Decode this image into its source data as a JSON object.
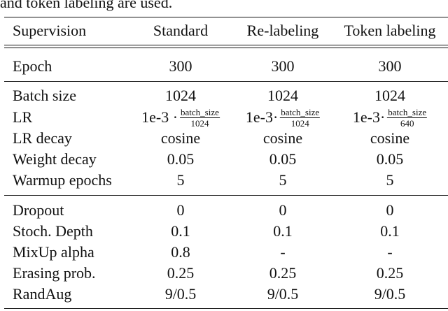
{
  "caption": "and token labeling are used.",
  "header": [
    "Supervision",
    "Standard",
    "Re-labeling",
    "Token labeling"
  ],
  "epoch_row": [
    "Epoch",
    "300",
    "300",
    "300"
  ],
  "group2": {
    "batch_size": [
      "Batch size",
      "1024",
      "1024",
      "1024"
    ],
    "lr": {
      "label": "LR",
      "cells": [
        {
          "prefix": "1e-3 ·",
          "num": "batch_size",
          "den": "1024"
        },
        {
          "prefix": "1e-3·",
          "num": "batch_size",
          "den": "1024"
        },
        {
          "prefix": "1e-3·",
          "num": "batch_size",
          "den": "640"
        }
      ]
    },
    "lr_decay": [
      "LR decay",
      "cosine",
      "cosine",
      "cosine"
    ],
    "weight_decay": [
      "Weight decay",
      "0.05",
      "0.05",
      "0.05"
    ],
    "warmup": [
      "Warmup epochs",
      "5",
      "5",
      "5"
    ]
  },
  "group3": {
    "dropout": [
      "Dropout",
      "0",
      "0",
      "0"
    ],
    "stoch_depth": [
      "Stoch. Depth",
      "0.1",
      "0.1",
      "0.1"
    ],
    "mixup": [
      "MixUp alpha",
      "0.8",
      "-",
      "-"
    ],
    "erasing": [
      "Erasing prob.",
      "0.25",
      "0.25",
      "0.25"
    ],
    "randaug": [
      "RandAug",
      "9/0.5",
      "9/0.5",
      "9/0.5"
    ]
  }
}
